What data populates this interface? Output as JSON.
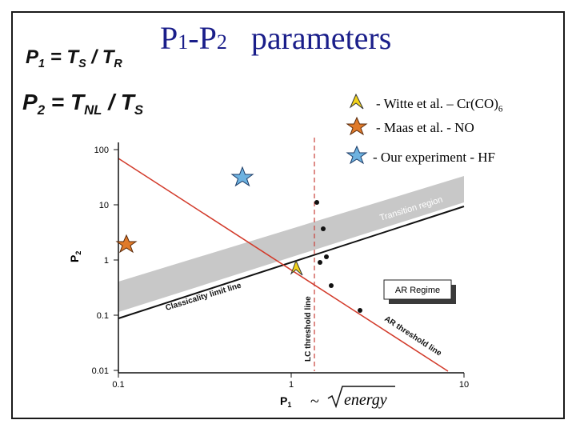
{
  "title": {
    "main_a": "P",
    "sub_a": "1",
    "dash": "-P",
    "sub_b": "2",
    "rest": "parameters"
  },
  "equations": [
    {
      "lhs": "P",
      "lhs_sub": "1",
      "rhs_a": "T",
      "rhs_a_sub": "S",
      "slash": " / ",
      "rhs_b": "T",
      "rhs_b_sub": "R"
    },
    {
      "lhs": "P",
      "lhs_sub": "2",
      "rhs_a": "T",
      "rhs_a_sub": "NL",
      "slash": " / ",
      "rhs_b": "T",
      "rhs_b_sub": "S"
    }
  ],
  "legend": [
    {
      "text": "- Witte et al. – Cr(CO)",
      "sub": "6",
      "marker": "yellow-triangle",
      "color": "#f2d21b"
    },
    {
      "text": "- Maas et al. - NO",
      "sub": "",
      "marker": "orange-star",
      "color": "#e07a2a"
    },
    {
      "text": "- Our experiment - HF",
      "sub": "",
      "marker": "blue-star",
      "color": "#6db2e0"
    }
  ],
  "plot": {
    "x_ticks": [
      "0.1",
      "1",
      "10"
    ],
    "y_ticks": [
      "100",
      "10",
      "1",
      "0.1",
      "0.01"
    ],
    "x_label": "P",
    "x_label_sub": "1",
    "y_label": "P",
    "y_label_sub": "2",
    "x_annotation": "~",
    "x_annotation_word": "energy",
    "region_labels": {
      "transition": "Transition region",
      "classicality": "Classicality limit line",
      "ar_regime": "AR Regime",
      "ar_threshold": "AR threshold line",
      "lc_threshold": "LC threshold line"
    },
    "colors": {
      "ar_line": "#d23a2a",
      "lc_line": "#c9403a",
      "band": "#c8c8c8",
      "border": "#1a1a1a",
      "title": "#1a1e8a"
    }
  }
}
